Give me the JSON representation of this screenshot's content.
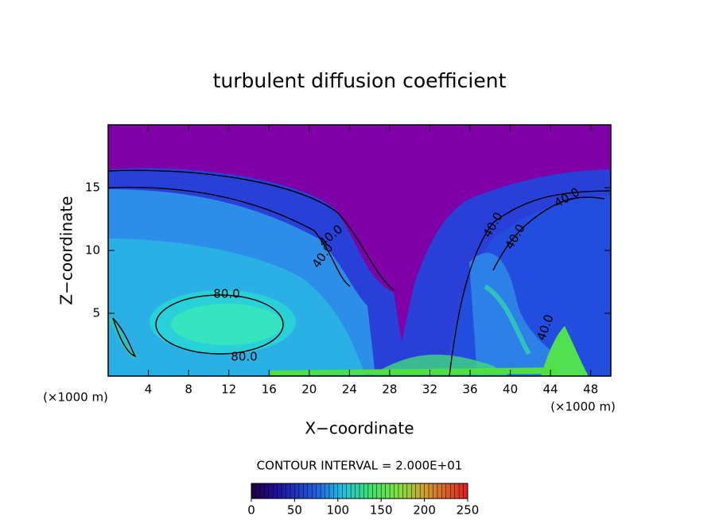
{
  "chart_data": {
    "type": "contour",
    "title": "turbulent diffusion coefficient",
    "xlabel": "X−coordinate",
    "ylabel": "Z−coordinate",
    "xunit": "(×1000 m)",
    "yunit": "(×1000 m)",
    "xlim": [
      0,
      50
    ],
    "ylim": [
      0,
      20
    ],
    "xticks": [
      4,
      8,
      12,
      16,
      20,
      24,
      28,
      32,
      36,
      40,
      44,
      48
    ],
    "yticks": [
      5,
      10,
      15
    ],
    "contour_labels": [
      {
        "value": 80,
        "label": "80.0"
      },
      {
        "value": 80,
        "label": "80.0"
      },
      {
        "value": 40,
        "label": "40.0"
      },
      {
        "value": 40,
        "label": "40.0"
      },
      {
        "value": 40,
        "label": "40.0"
      },
      {
        "value": 40,
        "label": "40.0"
      },
      {
        "value": 40,
        "label": "40.0"
      },
      {
        "value": 40,
        "label": "40.0"
      }
    ],
    "colorbar": {
      "label": "CONTOUR INTERVAL = 2.000E+01",
      "lim": [
        0,
        250
      ],
      "ticks": [
        0,
        50,
        100,
        150,
        200,
        250
      ]
    }
  }
}
